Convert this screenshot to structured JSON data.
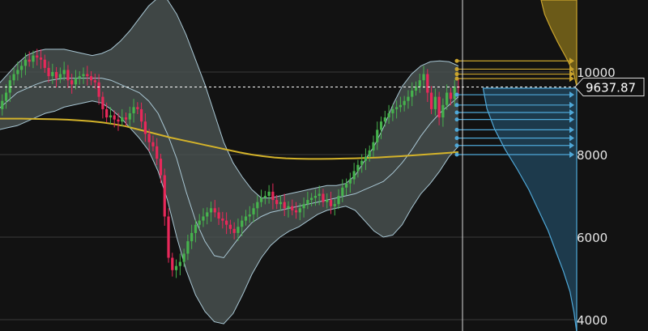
{
  "chart_data": {
    "type": "candlestick",
    "title": "",
    "xlabel": "",
    "ylabel": "",
    "ylim": [
      3800,
      11900
    ],
    "y_ticks": [
      4000,
      6000,
      8000,
      10000
    ],
    "y_tick_labels": [
      "4000",
      "6000",
      "8000",
      "10000"
    ],
    "grid": true,
    "current_price": 9637.87,
    "current_price_label": "9637.87",
    "series": [
      {
        "name": "",
        "kind": "close",
        "color": "#e8285a",
        "values": [
          9100,
          9300,
          9500,
          9800,
          9950,
          10050,
          10150,
          10300,
          10250,
          10400,
          10350,
          10300,
          10100,
          9900,
          10000,
          9850,
          9950,
          10050,
          9800,
          9700,
          9850,
          9900,
          9950,
          9900,
          9800,
          9750,
          9400,
          9100,
          8900,
          8950,
          8850,
          8800,
          8900,
          8850,
          9000,
          9150,
          9100,
          8800,
          8500,
          8300,
          8200,
          7900,
          7500,
          6500,
          5500,
          5200,
          5300,
          5400,
          5600,
          5900,
          6100,
          6300,
          6400,
          6500,
          6600,
          6700,
          6600,
          6450,
          6400,
          6300,
          6200,
          6100,
          6250,
          6400,
          6500,
          6550,
          6700,
          6850,
          6950,
          7000,
          7100,
          6900,
          6800,
          6850,
          6700,
          6750,
          6650,
          6600,
          6700,
          6800,
          6900,
          6950,
          7000,
          7050,
          6850,
          6900,
          6750,
          6800,
          7000,
          7200,
          7300,
          7400,
          7600,
          7750,
          7850,
          7950,
          8100,
          8300,
          8600,
          8800,
          8900,
          9000,
          9100,
          9150,
          9200,
          9300,
          9400,
          9550,
          9650,
          9800,
          9950,
          9500,
          9100,
          9400,
          8900,
          9200,
          9500,
          9350,
          9650,
          9637.87
        ]
      },
      {
        "name": "",
        "kind": "bollinger_upper",
        "color": "#a9c7d4",
        "values": [
          9700,
          9950,
          10200,
          10400,
          10500,
          10550,
          10550,
          10550,
          10500,
          10450,
          10400,
          10450,
          10550,
          10750,
          11000,
          11300,
          11600,
          11800,
          11750,
          11400,
          10900,
          10300,
          9700,
          9000,
          8300,
          7800,
          7450,
          7150,
          6950,
          6950,
          7000,
          7050,
          7100,
          7150,
          7200,
          7250,
          7250,
          7300,
          7500,
          7850,
          8200,
          8650,
          9200,
          9650,
          9950,
          10150,
          10250,
          10270,
          10250,
          10150
        ]
      },
      {
        "name": "",
        "kind": "bollinger_lower",
        "color": "#a9c7d4",
        "values": [
          8600,
          8650,
          8700,
          8800,
          8900,
          9000,
          9050,
          9150,
          9200,
          9250,
          9300,
          9250,
          9100,
          8900,
          8650,
          8400,
          8100,
          7600,
          6900,
          6000,
          5200,
          4600,
          4200,
          3950,
          3900,
          4150,
          4600,
          5100,
          5500,
          5800,
          6000,
          6150,
          6250,
          6400,
          6550,
          6650,
          6700,
          6750,
          6650,
          6400,
          6150,
          6000,
          6050,
          6300,
          6700,
          7050,
          7300,
          7600,
          7950,
          8200
        ]
      },
      {
        "name": "",
        "kind": "bollinger_middle",
        "color": "#a9c7d4",
        "values": [
          9100,
          9300,
          9500,
          9600,
          9700,
          9780,
          9820,
          9850,
          9850,
          9850,
          9850,
          9850,
          9800,
          9700,
          9600,
          9500,
          9300,
          9000,
          8500,
          7900,
          7100,
          6400,
          5900,
          5550,
          5500,
          5800,
          6100,
          6350,
          6500,
          6600,
          6650,
          6700,
          6750,
          6800,
          6850,
          6900,
          6950,
          7000,
          7050,
          7150,
          7250,
          7350,
          7550,
          7800,
          8100,
          8450,
          8750,
          9000,
          9200,
          9400
        ]
      },
      {
        "name": "",
        "kind": "moving_average",
        "color": "#d4b32a",
        "values": [
          8870,
          8870,
          8870,
          8865,
          8860,
          8855,
          8845,
          8830,
          8810,
          8780,
          8740,
          8690,
          8620,
          8550,
          8480,
          8410,
          8350,
          8290,
          8230,
          8170,
          8110,
          8050,
          8000,
          7960,
          7930,
          7910,
          7900,
          7895,
          7895,
          7898,
          7903,
          7910,
          7920,
          7930,
          7945,
          7960,
          7980,
          8000,
          8020,
          8040,
          8060
        ]
      }
    ],
    "order_book": {
      "asks": [
        {
          "name": "",
          "color": "#caa42d",
          "prices": [
            10270,
            10070,
            9950,
            9840
          ]
        }
      ],
      "bids": [
        {
          "name": "",
          "color": "#4fa8d8",
          "prices": [
            9450,
            9200,
            9020,
            8850,
            8600,
            8400,
            8220,
            8000
          ]
        }
      ]
    },
    "depth_bid_fraction": [
      0.98,
      0.94,
      0.86,
      0.75,
      0.62,
      0.5,
      0.4,
      0.3,
      0.22,
      0.14,
      0.07,
      0.03,
      0.0
    ],
    "depth_ask_fraction": [
      0.0,
      0.1,
      0.3,
      0.52,
      0.72,
      0.9,
      1.0
    ]
  }
}
